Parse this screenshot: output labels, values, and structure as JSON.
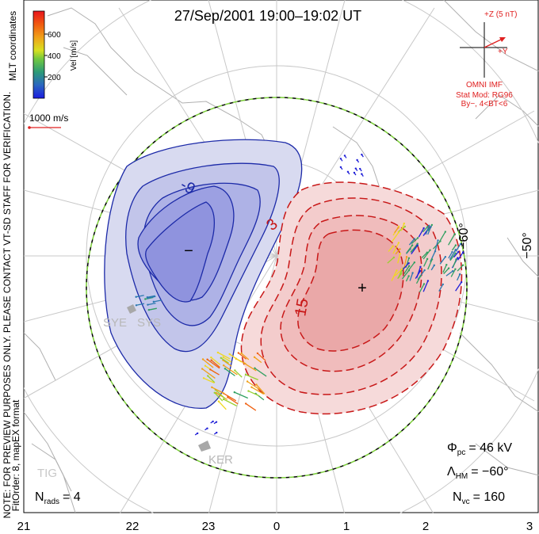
{
  "title": "27/Sep/2001 19:00–19:02 UT",
  "colorbar": {
    "unit_label": "Vel [m/s]",
    "ticks": [
      "600",
      "400",
      "200"
    ],
    "colors": [
      "#e8141c",
      "#f06010",
      "#f0a018",
      "#f0d820",
      "#98d030",
      "#30a060",
      "#2a78b0",
      "#2020d8"
    ]
  },
  "coord_label": "MLT coordinates",
  "scale_label": "1000 m/s",
  "imf": {
    "plus_z": "+Z (5 nT)",
    "plus_y": "+Y",
    "source": "OMNI IMF",
    "stat_mod": "Stat Mod: RG96",
    "condition": "By−, 4<BT<6"
  },
  "side_note": "NOTE: FOR PREVIEW PURPOSES ONLY. PLEASE CONTACT VT-SD STAFF FOR VERIFICATION.",
  "fit_order": "FitOrder: 8, mapEX format",
  "contour_labels": [
    "-9",
    "3",
    "15"
  ],
  "extrema": {
    "min_symbol": "−",
    "max_symbol": "+"
  },
  "lat_labels": [
    "−50°",
    "−60°"
  ],
  "radar_labels": [
    "SYE",
    "SYS",
    "KER",
    "TIG"
  ],
  "stats": {
    "phi_pc_symbol": "Φ",
    "phi_pc_sub": "pc",
    "phi_pc_value": "= 46 kV",
    "lambda_hm_symbol": "Λ",
    "lambda_hm_sub": "HM",
    "lambda_hm_value": "= −60°",
    "n_vc_symbol": "N",
    "n_vc_sub": "vc",
    "n_vc_value": "= 160",
    "n_rads_symbol": "N",
    "n_rads_sub": "rads",
    "n_rads_value": "= 4"
  },
  "mlt_ticks": [
    "21",
    "22",
    "23",
    "0",
    "1",
    "2",
    "3"
  ]
}
